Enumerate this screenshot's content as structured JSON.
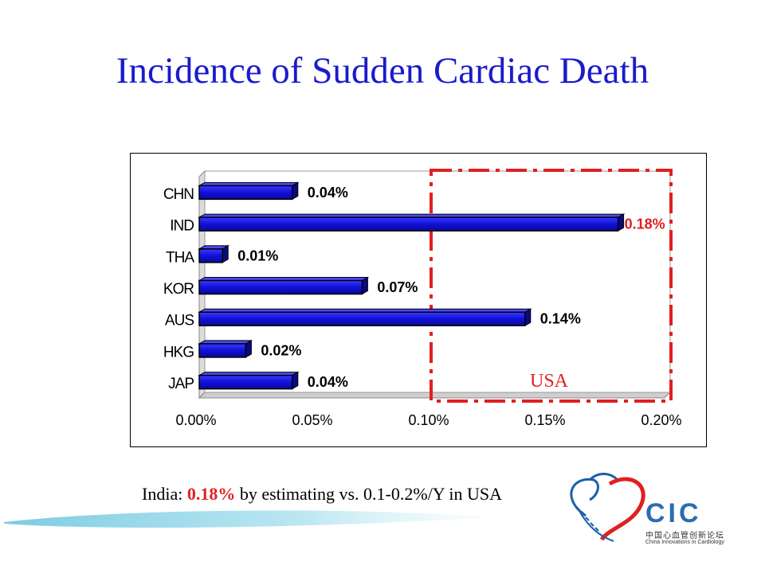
{
  "slide": {
    "title": "Incidence of Sudden Cardiac Death",
    "caption_prefix": "India: ",
    "caption_highlight": "0.18%",
    "caption_suffix": " by estimating vs. 0.1-0.2%/Y in USA"
  },
  "logo": {
    "text": "CIC",
    "cn": "中国心血管创新论坛",
    "en": "China Innovations in Cardiology"
  },
  "colors": {
    "title": "#1a1acc",
    "bar": "#1010d8",
    "highlight": "#e02020"
  },
  "chart_data": {
    "type": "bar",
    "orientation": "horizontal",
    "categories": [
      "CHN",
      "IND",
      "THA",
      "KOR",
      "AUS",
      "HKG",
      "JAP"
    ],
    "values": [
      0.04,
      0.18,
      0.01,
      0.07,
      0.14,
      0.02,
      0.04
    ],
    "value_labels": [
      "0.04%",
      "0.18%",
      "0.01%",
      "0.07%",
      "0.14%",
      "0.02%",
      "0.04%"
    ],
    "highlight_value_label": "0.18%",
    "xlim": [
      0,
      0.2
    ],
    "xticks": [
      "0.00%",
      "0.05%",
      "0.10%",
      "0.15%",
      "0.20%"
    ],
    "grid": false,
    "annotation": {
      "text": "USA",
      "x_range": [
        0.1,
        0.2
      ],
      "style": "red dash-dot box"
    }
  }
}
